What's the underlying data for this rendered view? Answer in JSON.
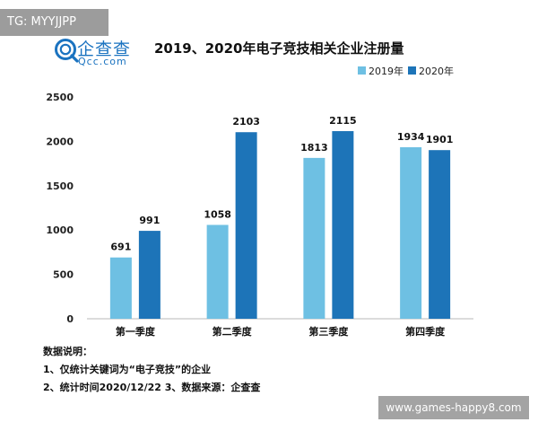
{
  "badge": {
    "text": "TG: MYYJJPP"
  },
  "logo": {
    "cn_text": "企查查",
    "en_text": "Qcc.com",
    "brand_color": "#1b73c0"
  },
  "chart_data": {
    "type": "bar",
    "title": "2019、2020年电子竞技相关企业注册量",
    "categories": [
      "第一季度",
      "第二季度",
      "第三季度",
      "第四季度"
    ],
    "series": [
      {
        "name": "2019年",
        "values": [
          691,
          1058,
          1813,
          1934
        ],
        "color": "#6ec0e3"
      },
      {
        "name": "2020年",
        "values": [
          991,
          2103,
          2115,
          1901
        ],
        "color": "#1d74b8"
      }
    ],
    "ylim": [
      0,
      2500
    ],
    "yticks": [
      0,
      500,
      1000,
      1500,
      2000,
      2500
    ],
    "ytick_labels": [
      "0",
      "500",
      "1000",
      "1500",
      "2000",
      "2500"
    ],
    "grid": false,
    "legend_position": "top-right",
    "xlabel": "",
    "ylabel": ""
  },
  "notes": {
    "heading": "数据说明：",
    "line1": "1、仅统计关键词为“电子竞技”的企业",
    "line2": "2、统计时间2020/12/22    3、数据来源：企查查"
  },
  "watermark": {
    "text": "www.games-happy8.com"
  }
}
